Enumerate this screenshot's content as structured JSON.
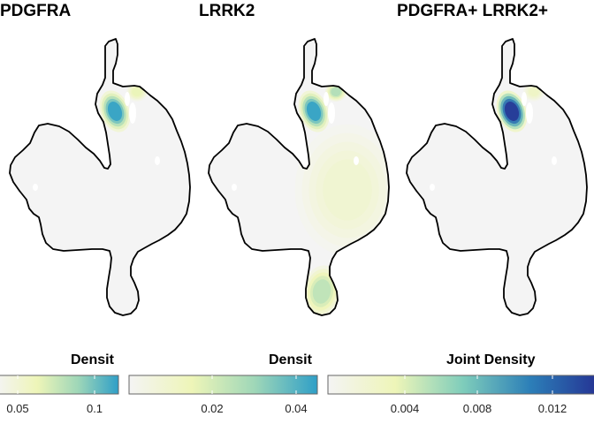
{
  "chart_data": [
    {
      "type": "heatmap",
      "title": "PDGFRA",
      "legend_title": "Densit",
      "colorbar_ticks": [
        "0.05",
        "0.1"
      ],
      "color_scale": [
        "#f4f4f4",
        "#eef5b8",
        "#9fd7b8",
        "#2f9fc7"
      ],
      "hotspots": [
        {
          "region": "upper-left lobe",
          "level": 1.0
        },
        {
          "region": "upper-right lobe",
          "level": 0.35
        }
      ]
    },
    {
      "type": "heatmap",
      "title": "LRRK2",
      "legend_title": "Densit",
      "colorbar_ticks": [
        "0.02",
        "0.04"
      ],
      "color_scale": [
        "#f4f4f4",
        "#eef5b8",
        "#9fd7b8",
        "#2f9fc7"
      ],
      "hotspots": [
        {
          "region": "upper-left lobe",
          "level": 1.0
        },
        {
          "region": "upper-right lobe",
          "level": 0.6
        },
        {
          "region": "lower tail",
          "level": 0.55
        },
        {
          "region": "central body",
          "level": 0.2
        }
      ]
    },
    {
      "type": "heatmap",
      "title": "PDGFRA+ LRRK2+",
      "legend_title": "Joint Density",
      "colorbar_ticks": [
        "0.004",
        "0.008",
        "0.012"
      ],
      "color_scale": [
        "#f4f4f4",
        "#eef5b8",
        "#7fcdbb",
        "#2c7fb8",
        "#253494"
      ],
      "hotspots": [
        {
          "region": "upper-left lobe",
          "level": 1.0
        },
        {
          "region": "upper-right lobe",
          "level": 0.2
        }
      ]
    }
  ]
}
